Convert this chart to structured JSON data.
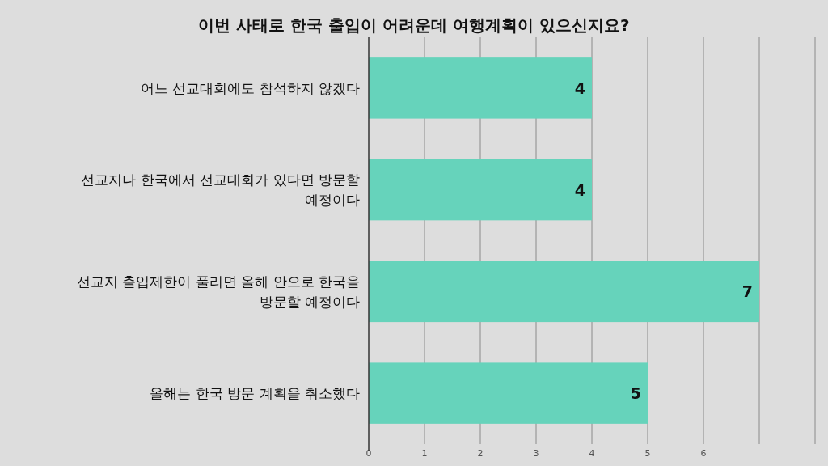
{
  "chart_data": {
    "type": "bar",
    "orientation": "horizontal",
    "title": "이번 사태로 한국 출입이 어려운데 여행계획이 있으신지요?",
    "categories": [
      "어느 선교대회에도 참석하지 않겠다",
      "선교지나 한국에서 선교대회가 있다면 방문할 예정이다",
      "선교지 출입제한이 풀리면 올해 안으로 한국을 방문할 예정이다",
      "올해는 한국 방문 계획을 취소했다"
    ],
    "values": [
      4,
      4,
      7,
      5
    ],
    "color": "#66d3bb",
    "data_labels": true,
    "grid": "x",
    "xlim": [
      0,
      8
    ],
    "xticks": [
      0,
      1,
      2,
      3,
      4,
      5,
      6,
      {
        "value": 7,
        "label": null
      },
      {
        "value": 8,
        "label": null
      }
    ]
  }
}
